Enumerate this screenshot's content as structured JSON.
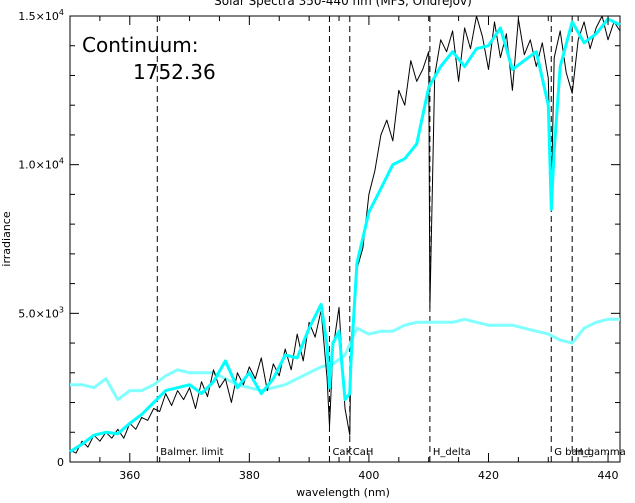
{
  "chart_data": {
    "type": "line",
    "title": "Solar Spectra 350-440 nm (MFS, Ondrejov)",
    "xlabel": "wavelength (nm)",
    "ylabel": "irradiance",
    "xlim": [
      350,
      442
    ],
    "ylim": [
      0,
      15000
    ],
    "x_ticks": [
      {
        "value": 360,
        "label": "360"
      },
      {
        "value": 380,
        "label": "380"
      },
      {
        "value": 400,
        "label": "400"
      },
      {
        "value": 420,
        "label": "420"
      },
      {
        "value": 440,
        "label": "440"
      }
    ],
    "y_ticks": [
      {
        "value": 0,
        "label": "0",
        "sup": ""
      },
      {
        "value": 5000,
        "label": "5.0×10",
        "sup": "3"
      },
      {
        "value": 10000,
        "label": "1.0×10",
        "sup": "4"
      },
      {
        "value": 15000,
        "label": "1.5×10",
        "sup": "4"
      }
    ],
    "continuum_label": "Continuum:",
    "continuum_value": "1752.36",
    "reference_lines": [
      {
        "x": 364.6,
        "label": "Balmer. limit"
      },
      {
        "x": 393.4,
        "label": "CaK"
      },
      {
        "x": 396.8,
        "label": "CaH"
      },
      {
        "x": 410.2,
        "label": "H_delta"
      },
      {
        "x": 430.5,
        "label": "G band"
      },
      {
        "x": 434.0,
        "label": "H_gamma"
      }
    ],
    "series": [
      {
        "color": "#000000",
        "x": [
          350,
          351,
          352,
          353,
          354,
          355,
          356,
          357,
          358,
          359,
          360,
          361,
          362,
          363,
          364,
          365,
          366,
          367,
          368,
          369,
          370,
          371,
          372,
          373,
          374,
          375,
          376,
          377,
          378,
          379,
          380,
          381,
          382,
          383,
          384,
          385,
          386,
          387,
          388,
          389,
          390,
          391,
          392,
          393,
          393.4,
          394,
          395,
          396,
          396.8,
          397,
          398,
          399,
          400,
          401,
          402,
          403,
          404,
          405,
          406,
          407,
          408,
          409,
          410,
          410.2,
          411,
          412,
          413,
          414,
          415,
          416,
          417,
          418,
          419,
          420,
          421,
          422,
          423,
          424,
          425,
          426,
          427,
          428,
          429,
          430,
          430.5,
          431,
          432,
          433,
          434,
          435,
          436,
          437,
          438,
          439,
          440,
          441,
          442
        ],
        "values": [
          400,
          300,
          700,
          500,
          900,
          700,
          1000,
          800,
          1100,
          800,
          1300,
          1100,
          1500,
          1400,
          1800,
          1700,
          2300,
          1900,
          2400,
          2100,
          2500,
          1800,
          2700,
          2200,
          3100,
          2500,
          2800,
          2000,
          3000,
          2600,
          3200,
          2800,
          3500,
          2400,
          3300,
          2900,
          3800,
          3100,
          4300,
          3400,
          4700,
          4200,
          5100,
          2800,
          1200,
          3800,
          5200,
          1800,
          900,
          4000,
          6500,
          7200,
          9000,
          9800,
          11000,
          11500,
          10800,
          12500,
          12000,
          13500,
          12800,
          13200,
          13800,
          5200,
          13000,
          14200,
          13800,
          14500,
          12800,
          14600,
          13900,
          15000,
          14300,
          13200,
          14800,
          13600,
          14400,
          12500,
          14900,
          13700,
          14200,
          13300,
          14100,
          12900,
          8900,
          13600,
          14500,
          13100,
          12400,
          14200,
          14800,
          13900,
          14600,
          15000,
          14200,
          14800,
          14500
        ]
      },
      {
        "color": "#00ffff",
        "x": [
          350,
          352,
          354,
          356,
          358,
          360,
          362,
          364,
          365,
          366,
          368,
          370,
          372,
          374,
          376,
          378,
          380,
          382,
          384,
          386,
          388,
          390,
          392,
          393,
          393.4,
          394,
          395,
          396,
          396.8,
          397,
          398,
          400,
          402,
          404,
          406,
          408,
          410,
          412,
          414,
          416,
          418,
          420,
          422,
          424,
          426,
          428,
          430,
          430.5,
          431,
          432,
          434,
          436,
          438,
          440,
          442
        ],
        "values": [
          350,
          600,
          900,
          1000,
          950,
          1300,
          1600,
          2000,
          2200,
          2400,
          2500,
          2600,
          2300,
          2700,
          3400,
          2500,
          3000,
          2300,
          2800,
          3600,
          3500,
          4500,
          5300,
          3900,
          2500,
          4000,
          4400,
          2100,
          2300,
          3400,
          6700,
          8400,
          9200,
          10000,
          10200,
          10700,
          12600,
          13300,
          13800,
          13300,
          13900,
          14000,
          14600,
          13200,
          13500,
          13800,
          12000,
          8500,
          10500,
          13300,
          14800,
          14100,
          14400,
          14900,
          14700
        ]
      },
      {
        "color": "#80ffff",
        "x": [
          350,
          352,
          354,
          356,
          358,
          360,
          362,
          364,
          366,
          368,
          370,
          372,
          374,
          376,
          378,
          380,
          382,
          384,
          386,
          388,
          390,
          392,
          394,
          396,
          398,
          400,
          402,
          404,
          406,
          408,
          410,
          412,
          414,
          416,
          418,
          420,
          422,
          424,
          426,
          428,
          430,
          432,
          434,
          436,
          438,
          440,
          442
        ],
        "values": [
          2600,
          2600,
          2500,
          2800,
          2100,
          2400,
          2400,
          2600,
          2900,
          3100,
          3000,
          3000,
          3000,
          2800,
          2600,
          2500,
          2400,
          2500,
          2600,
          2800,
          3000,
          3200,
          3300,
          3600,
          4500,
          4300,
          4400,
          4400,
          4600,
          4700,
          4700,
          4700,
          4700,
          4800,
          4700,
          4600,
          4600,
          4600,
          4500,
          4400,
          4300,
          4100,
          4000,
          4500,
          4700,
          4800,
          4800
        ]
      }
    ]
  }
}
